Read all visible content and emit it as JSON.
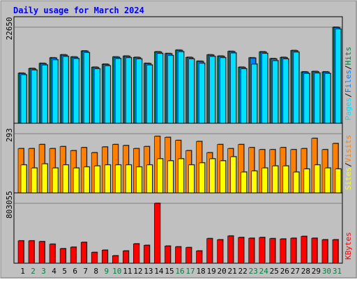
{
  "chart_data": {
    "type": "bar",
    "title": "Daily usage for March 2024",
    "days": [
      "1",
      "2",
      "3",
      "4",
      "5",
      "6",
      "7",
      "8",
      "9",
      "10",
      "11",
      "12",
      "13",
      "14",
      "15",
      "16",
      "17",
      "18",
      "19",
      "20",
      "21",
      "22",
      "23",
      "24",
      "25",
      "26",
      "27",
      "28",
      "29",
      "30",
      "31"
    ],
    "weekend_days": [
      "2",
      "3",
      "9",
      "10",
      "16",
      "17",
      "23",
      "24",
      "30",
      "31"
    ],
    "panels": [
      {
        "key": "hits_files_pages",
        "ymax_label": "22650",
        "ymax": 22650,
        "right_label_parts": [
          "Pages",
          "/",
          "Files",
          "/",
          "Hits"
        ],
        "series": [
          {
            "name": "Hits",
            "color": "#008040",
            "values": [
              11900,
              13000,
              14200,
              15500,
              16200,
              15700,
              17100,
              13300,
              14000,
              15700,
              15900,
              15600,
              14200,
              16900,
              16500,
              17300,
              15600,
              14700,
              16200,
              15900,
              17000,
              13300,
              15500,
              16900,
              15300,
              15600,
              17200,
              12200,
              12300,
              12200,
              22650
            ]
          },
          {
            "name": "Files",
            "color": "#0080ff",
            "values": [
              11800,
              12900,
              14100,
              15400,
              16100,
              15600,
              17000,
              13200,
              13900,
              15600,
              15800,
              15500,
              14100,
              16800,
              16400,
              17200,
              15500,
              14600,
              16100,
              15800,
              16900,
              13200,
              15400,
              16800,
              15200,
              15500,
              17100,
              12100,
              12200,
              12100,
              22550
            ]
          },
          {
            "name": "Pages",
            "color": "#00e0ff",
            "values": [
              11500,
              12600,
              13800,
              15000,
              15800,
              15300,
              16700,
              12900,
              13600,
              15300,
              15500,
              15200,
              13800,
              16500,
              16000,
              16900,
              15200,
              14200,
              15800,
              15500,
              16600,
              12900,
              14000,
              16500,
              14800,
              15200,
              16800,
              11800,
              11900,
              11800,
              22200
            ]
          }
        ]
      },
      {
        "key": "visits_sites",
        "ymax_label": "293",
        "ymax": 293,
        "right_label_parts": [
          "Sites",
          "/",
          "Visits"
        ],
        "series": [
          {
            "name": "Visits",
            "color": "#ff8000",
            "values": [
              220,
              220,
              240,
              220,
              230,
              210,
              225,
              200,
              228,
              240,
              235,
              220,
              230,
              280,
              275,
              260,
              210,
              255,
              200,
              240,
              220,
              240,
              225,
              215,
              215,
              225,
              215,
              220,
              270,
              215,
              245
            ]
          },
          {
            "name": "Sites",
            "color": "#ffff00",
            "values": [
              140,
              125,
              145,
              125,
              140,
              125,
              130,
              135,
              140,
              140,
              140,
              130,
              140,
              170,
              160,
              170,
              140,
              150,
              170,
              160,
              180,
              105,
              110,
              125,
              135,
              135,
              105,
              120,
              140,
              125,
              120
            ]
          }
        ]
      },
      {
        "key": "kbytes",
        "ymax_label": "803055",
        "ymax": 803055,
        "right_label_parts": [
          "KBytes"
        ],
        "series": [
          {
            "name": "KBytes",
            "color": "#ff0000",
            "values": [
              300000,
              300000,
              290000,
              255000,
              195000,
              215000,
              280000,
              145000,
              175000,
              100000,
              165000,
              260000,
              240000,
              825000,
              230000,
              220000,
              210000,
              165000,
              330000,
              315000,
              365000,
              345000,
              335000,
              345000,
              330000,
              325000,
              335000,
              360000,
              335000,
              315000,
              315000
            ]
          }
        ]
      }
    ],
    "colors": {
      "background": "#c0c0c0",
      "title": "#0000ff",
      "axis_text": "#000000",
      "weekend_text": "#008040",
      "gridline": "#808080"
    }
  }
}
